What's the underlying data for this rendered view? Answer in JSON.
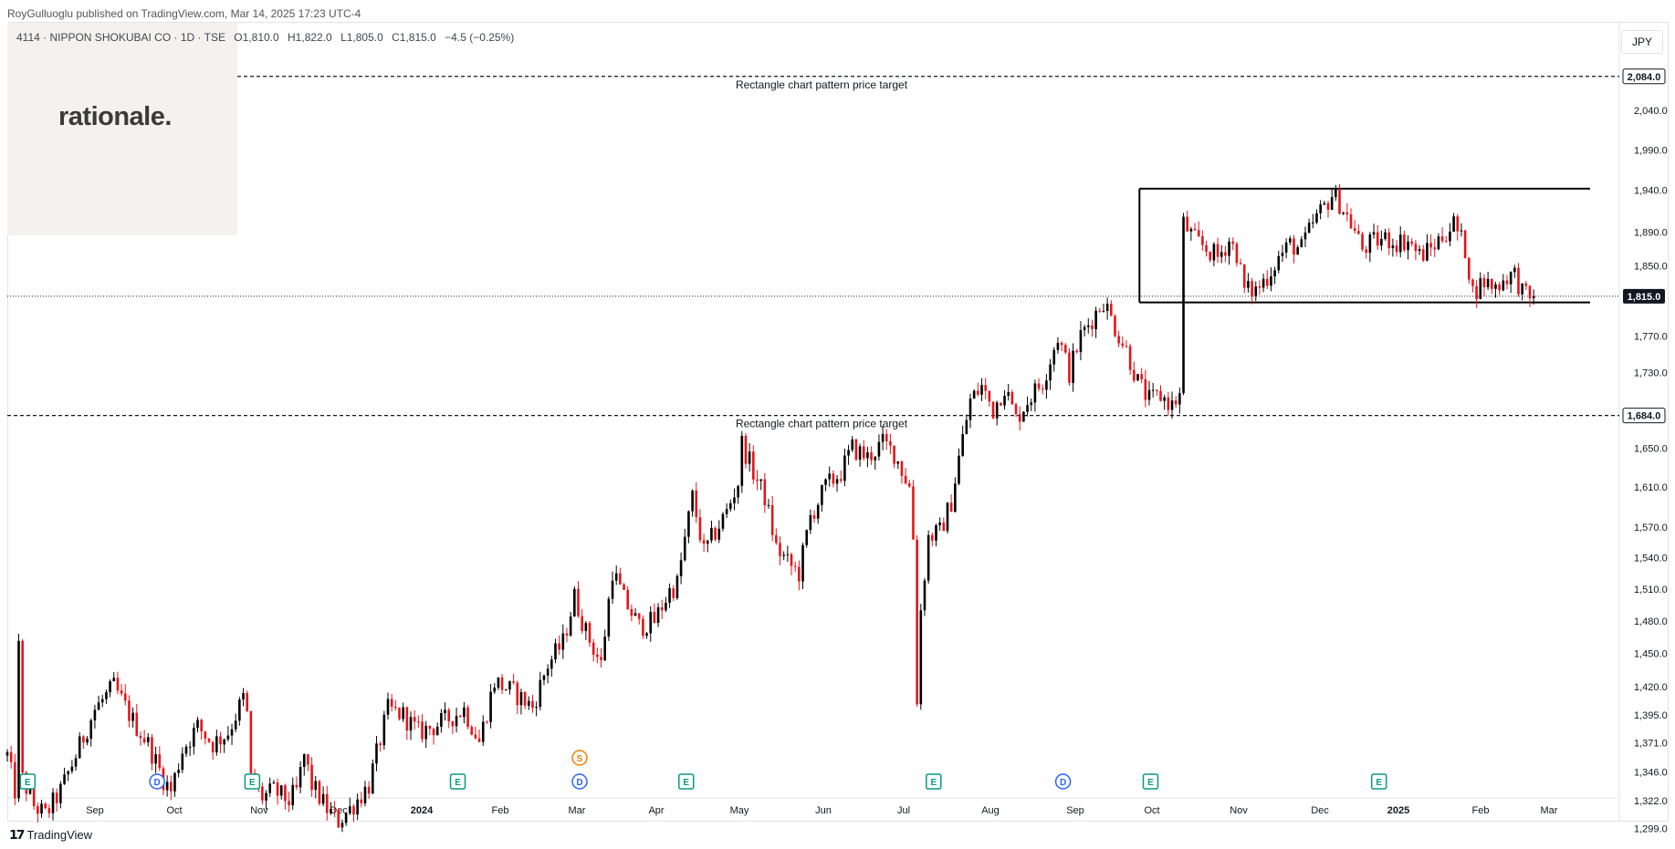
{
  "header": {
    "publisher_line": "RoyGulluoglu published on TradingView.com, Mar 14, 2025 17:23 UTC-4"
  },
  "brand": {
    "logo_text": "rationale."
  },
  "symbol": {
    "name": "4114 · NIPPON SHOKUBAI CO · 1D · TSE",
    "open": "O1,810.0",
    "high": "H1,822.0",
    "low": "L1,805.0",
    "close": "C1,815.0",
    "change": "−4.5 (−0.25%)"
  },
  "currency": "JPY",
  "footer": {
    "logo_text": "TradingView"
  },
  "colors": {
    "up": "#000000",
    "down": "#e3151a",
    "axis_text": "#131722",
    "grid": "#f0f3fa"
  },
  "chart_data": {
    "type": "candlestick",
    "y_axis": {
      "ticks": [
        1299,
        1322,
        1346,
        1371,
        1395,
        1420,
        1450,
        1480,
        1510,
        1540,
        1570,
        1610,
        1650,
        1730,
        1770,
        1850,
        1890,
        1940,
        1990,
        2040
      ],
      "tick_labels": [
        "1,299.0",
        "1,322.0",
        "1,346.0",
        "1,371.0",
        "1,395.0",
        "1,420.0",
        "1,450.0",
        "1,480.0",
        "1,510.0",
        "1,540.0",
        "1,570.0",
        "1,610.0",
        "1,650.0",
        "1,730.0",
        "1,770.0",
        "1,850.0",
        "1,890.0",
        "1,940.0",
        "1,990.0",
        "2,040.0"
      ],
      "scale": "log"
    },
    "x_axis": {
      "labels": [
        "Sep",
        "Oct",
        "Nov",
        "Dec",
        "2024",
        "Feb",
        "Mar",
        "Apr",
        "May",
        "Jun",
        "Jul",
        "Aug",
        "Sep",
        "Oct",
        "Nov",
        "Dec",
        "2025",
        "Feb",
        "Mar"
      ],
      "bold": [
        "2024",
        "2025"
      ]
    },
    "current_price": {
      "value": 1815,
      "label": "1,815.0"
    },
    "targets": [
      {
        "value": 2084,
        "label": "2,084.0",
        "text": "Rectangle chart pattern price target"
      },
      {
        "value": 1684,
        "label": "1,684.0",
        "text": "Rectangle chart pattern price target"
      }
    ],
    "rectangle": {
      "top": 1942,
      "bottom": 1808,
      "start_index": 296,
      "end_index": 338
    },
    "events": [
      {
        "index": 2,
        "type": "E"
      },
      {
        "index": 36,
        "type": "D"
      },
      {
        "index": 61,
        "type": "E"
      },
      {
        "index": 115,
        "type": "E"
      },
      {
        "index": 147,
        "type": "D"
      },
      {
        "index": 147,
        "type": "S"
      },
      {
        "index": 175,
        "type": "E"
      },
      {
        "index": 240,
        "type": "E"
      },
      {
        "index": 274,
        "type": "D"
      },
      {
        "index": 297,
        "type": "E"
      },
      {
        "index": 357,
        "type": "E"
      }
    ],
    "anchors": [
      [
        0,
        1360
      ],
      [
        2,
        1330
      ],
      [
        3,
        1455
      ],
      [
        4,
        1340
      ],
      [
        7,
        1318
      ],
      [
        10,
        1310
      ],
      [
        14,
        1330
      ],
      [
        18,
        1360
      ],
      [
        23,
        1400
      ],
      [
        28,
        1420
      ],
      [
        33,
        1390
      ],
      [
        37,
        1370
      ],
      [
        41,
        1340
      ],
      [
        43,
        1330
      ],
      [
        46,
        1365
      ],
      [
        50,
        1385
      ],
      [
        54,
        1370
      ],
      [
        58,
        1380
      ],
      [
        62,
        1410
      ],
      [
        63,
        1395
      ],
      [
        64,
        1340
      ],
      [
        67,
        1325
      ],
      [
        70,
        1330
      ],
      [
        74,
        1322
      ],
      [
        76,
        1330
      ],
      [
        78,
        1360
      ],
      [
        80,
        1335
      ],
      [
        84,
        1315
      ],
      [
        87,
        1305
      ],
      [
        90,
        1315
      ],
      [
        95,
        1335
      ],
      [
        100,
        1400
      ],
      [
        104,
        1395
      ],
      [
        108,
        1380
      ],
      [
        112,
        1385
      ],
      [
        116,
        1392
      ],
      [
        120,
        1400
      ],
      [
        124,
        1372
      ],
      [
        128,
        1425
      ],
      [
        133,
        1415
      ],
      [
        138,
        1402
      ],
      [
        142,
        1440
      ],
      [
        146,
        1460
      ],
      [
        149,
        1503
      ],
      [
        152,
        1470
      ],
      [
        156,
        1440
      ],
      [
        159,
        1528
      ],
      [
        162,
        1500
      ],
      [
        166,
        1475
      ],
      [
        170,
        1480
      ],
      [
        174,
        1508
      ],
      [
        176,
        1515
      ],
      [
        180,
        1600
      ],
      [
        183,
        1545
      ],
      [
        186,
        1565
      ],
      [
        189,
        1585
      ],
      [
        192,
        1615
      ],
      [
        193,
        1655
      ],
      [
        196,
        1625
      ],
      [
        199,
        1600
      ],
      [
        202,
        1550
      ],
      [
        205,
        1535
      ],
      [
        208,
        1525
      ],
      [
        211,
        1580
      ],
      [
        215,
        1610
      ],
      [
        219,
        1625
      ],
      [
        222,
        1650
      ],
      [
        226,
        1640
      ],
      [
        230,
        1655
      ],
      [
        233,
        1645
      ],
      [
        237,
        1610
      ],
      [
        238,
        1560
      ],
      [
        239,
        1410
      ],
      [
        240,
        1490
      ],
      [
        242,
        1560
      ],
      [
        245,
        1565
      ],
      [
        248,
        1595
      ],
      [
        250,
        1640
      ],
      [
        253,
        1700
      ],
      [
        256,
        1715
      ],
      [
        259,
        1690
      ],
      [
        262,
        1715
      ],
      [
        265,
        1680
      ],
      [
        268,
        1700
      ],
      [
        272,
        1720
      ],
      [
        276,
        1770
      ],
      [
        279,
        1730
      ],
      [
        282,
        1770
      ],
      [
        285,
        1790
      ],
      [
        288,
        1810
      ],
      [
        291,
        1780
      ],
      [
        294,
        1755
      ],
      [
        297,
        1720
      ],
      [
        300,
        1700
      ],
      [
        303,
        1705
      ],
      [
        306,
        1695
      ],
      [
        308,
        1705
      ],
      [
        309,
        1900
      ],
      [
        312,
        1880
      ],
      [
        315,
        1870
      ],
      [
        318,
        1860
      ],
      [
        321,
        1880
      ],
      [
        323,
        1865
      ],
      [
        325,
        1822
      ],
      [
        328,
        1822
      ],
      [
        331,
        1838
      ],
      [
        334,
        1860
      ],
      [
        337,
        1875
      ],
      [
        340,
        1870
      ],
      [
        343,
        1900
      ],
      [
        346,
        1920
      ],
      [
        348,
        1935
      ],
      [
        350,
        1925
      ],
      [
        353,
        1900
      ],
      [
        356,
        1870
      ],
      [
        359,
        1878
      ],
      [
        362,
        1882
      ],
      [
        365,
        1878
      ],
      [
        368,
        1880
      ],
      [
        371,
        1862
      ],
      [
        374,
        1870
      ],
      [
        377,
        1885
      ],
      [
        380,
        1900
      ],
      [
        383,
        1870
      ],
      [
        385,
        1820
      ],
      [
        388,
        1832
      ],
      [
        391,
        1826
      ],
      [
        394,
        1838
      ],
      [
        396,
        1840
      ],
      [
        398,
        1820
      ],
      [
        400,
        1810
      ],
      [
        401,
        1815
      ]
    ]
  }
}
